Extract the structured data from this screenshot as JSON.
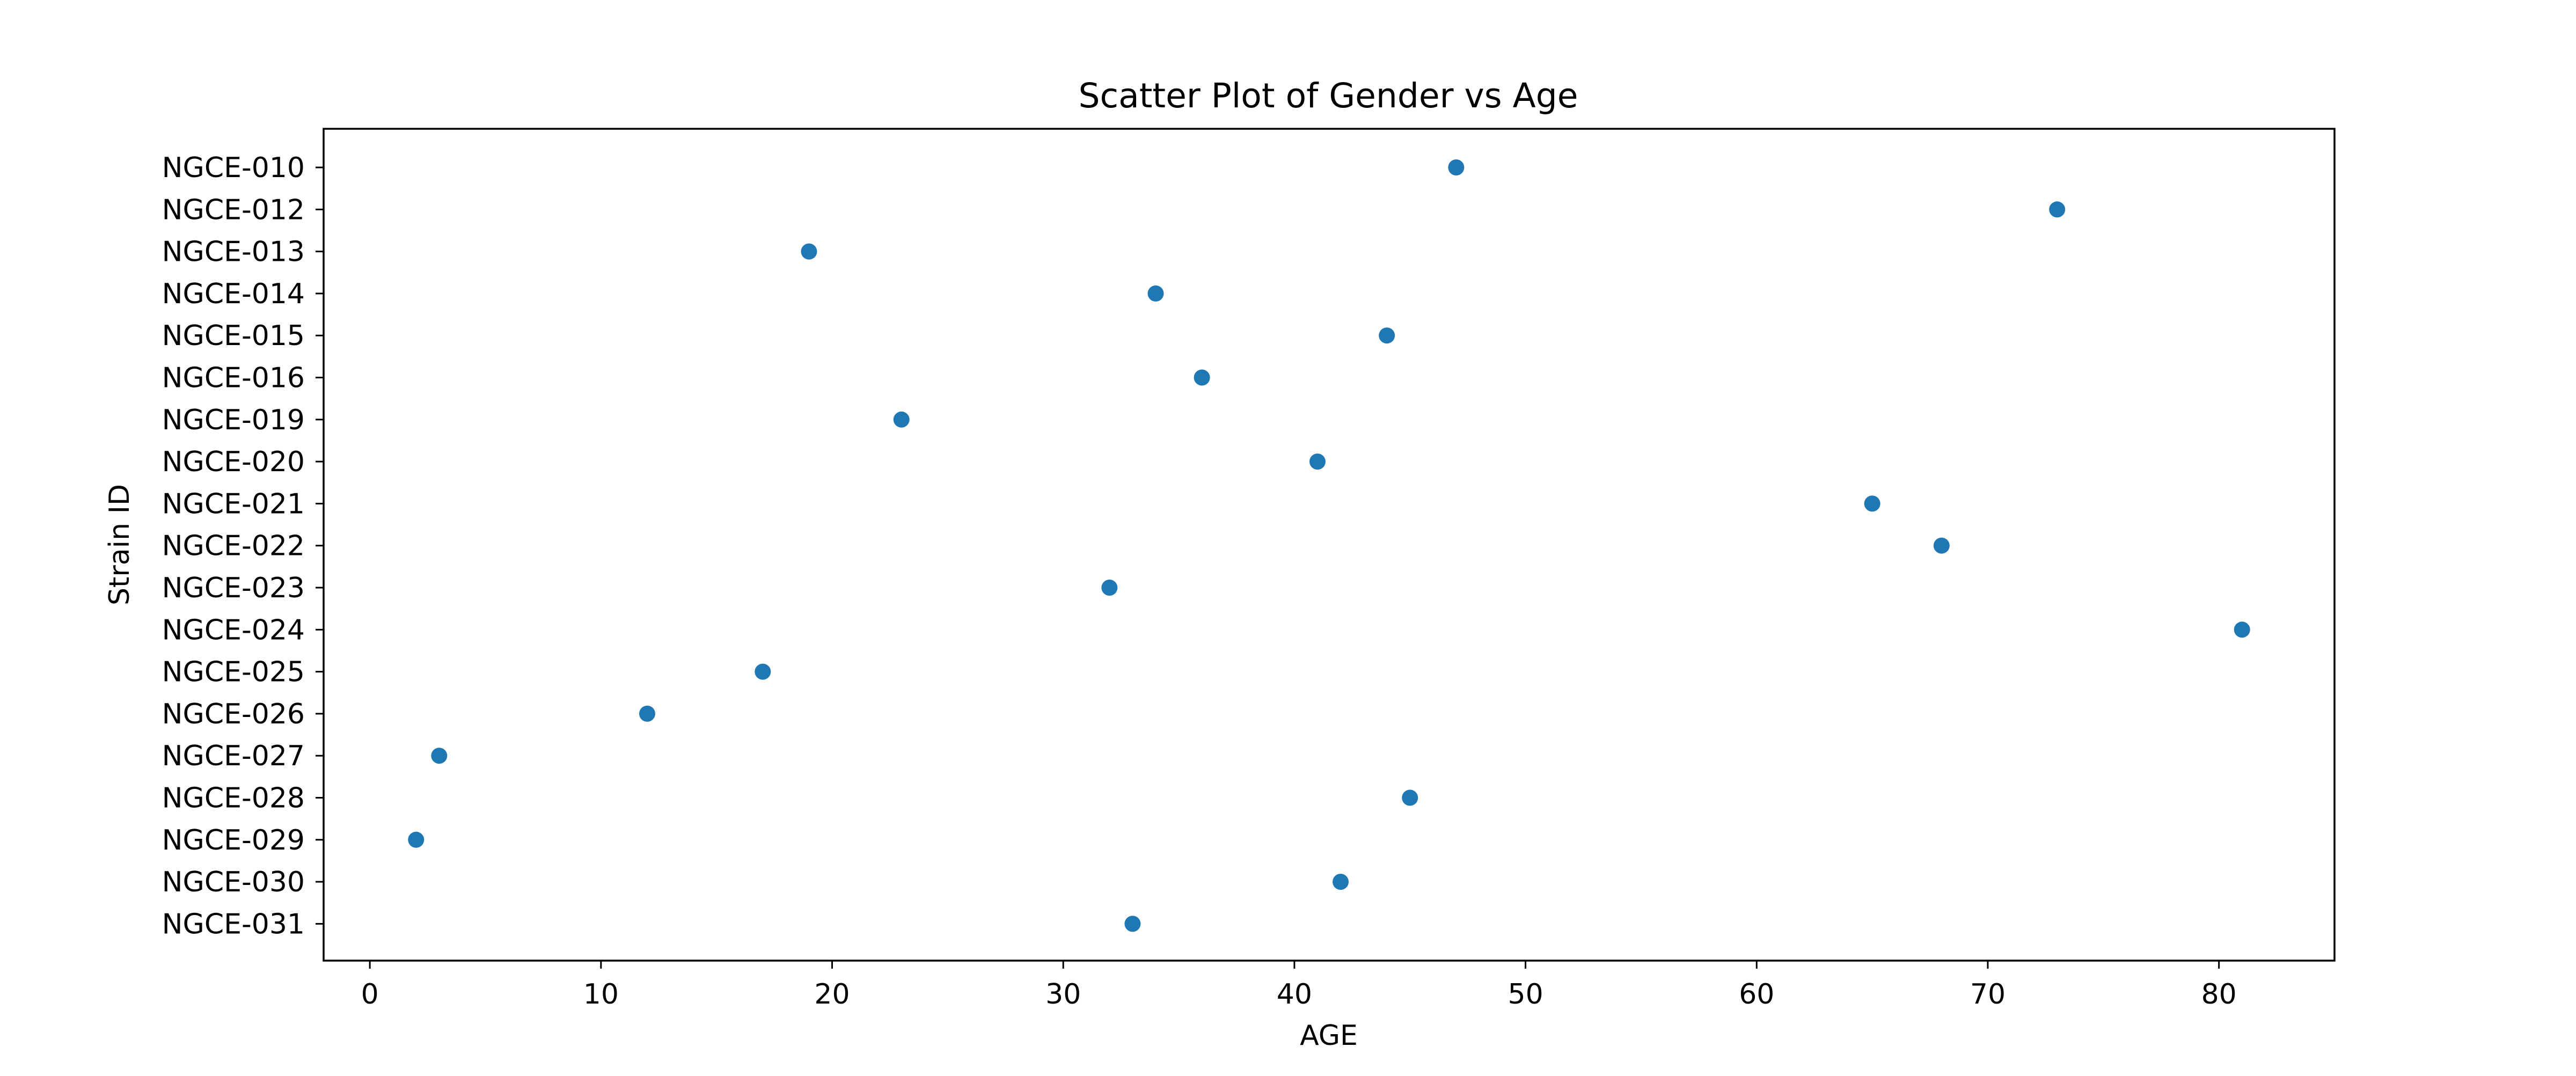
{
  "chart_data": {
    "type": "scatter",
    "title": "Scatter Plot of Gender vs Age",
    "xlabel": "AGE",
    "ylabel": "Strain ID",
    "xlim": [
      -2,
      85
    ],
    "xticks": [
      0,
      10,
      20,
      30,
      40,
      50,
      60,
      70,
      80
    ],
    "grid": false,
    "legend": "none",
    "marker_color": "#1f77b4",
    "categories": [
      "NGCE-010",
      "NGCE-012",
      "NGCE-013",
      "NGCE-014",
      "NGCE-015",
      "NGCE-016",
      "NGCE-019",
      "NGCE-020",
      "NGCE-021",
      "NGCE-022",
      "NGCE-023",
      "NGCE-024",
      "NGCE-025",
      "NGCE-026",
      "NGCE-027",
      "NGCE-028",
      "NGCE-029",
      "NGCE-030",
      "NGCE-031"
    ],
    "points": [
      {
        "x": 47,
        "y": "NGCE-010"
      },
      {
        "x": 73,
        "y": "NGCE-012"
      },
      {
        "x": 19,
        "y": "NGCE-013"
      },
      {
        "x": 34,
        "y": "NGCE-014"
      },
      {
        "x": 44,
        "y": "NGCE-015"
      },
      {
        "x": 36,
        "y": "NGCE-016"
      },
      {
        "x": 23,
        "y": "NGCE-019"
      },
      {
        "x": 41,
        "y": "NGCE-020"
      },
      {
        "x": 65,
        "y": "NGCE-021"
      },
      {
        "x": 68,
        "y": "NGCE-022"
      },
      {
        "x": 32,
        "y": "NGCE-023"
      },
      {
        "x": 81,
        "y": "NGCE-024"
      },
      {
        "x": 17,
        "y": "NGCE-025"
      },
      {
        "x": 12,
        "y": "NGCE-026"
      },
      {
        "x": 3,
        "y": "NGCE-027"
      },
      {
        "x": 45,
        "y": "NGCE-028"
      },
      {
        "x": 2,
        "y": "NGCE-029"
      },
      {
        "x": 42,
        "y": "NGCE-030"
      },
      {
        "x": 33,
        "y": "NGCE-031"
      }
    ]
  }
}
